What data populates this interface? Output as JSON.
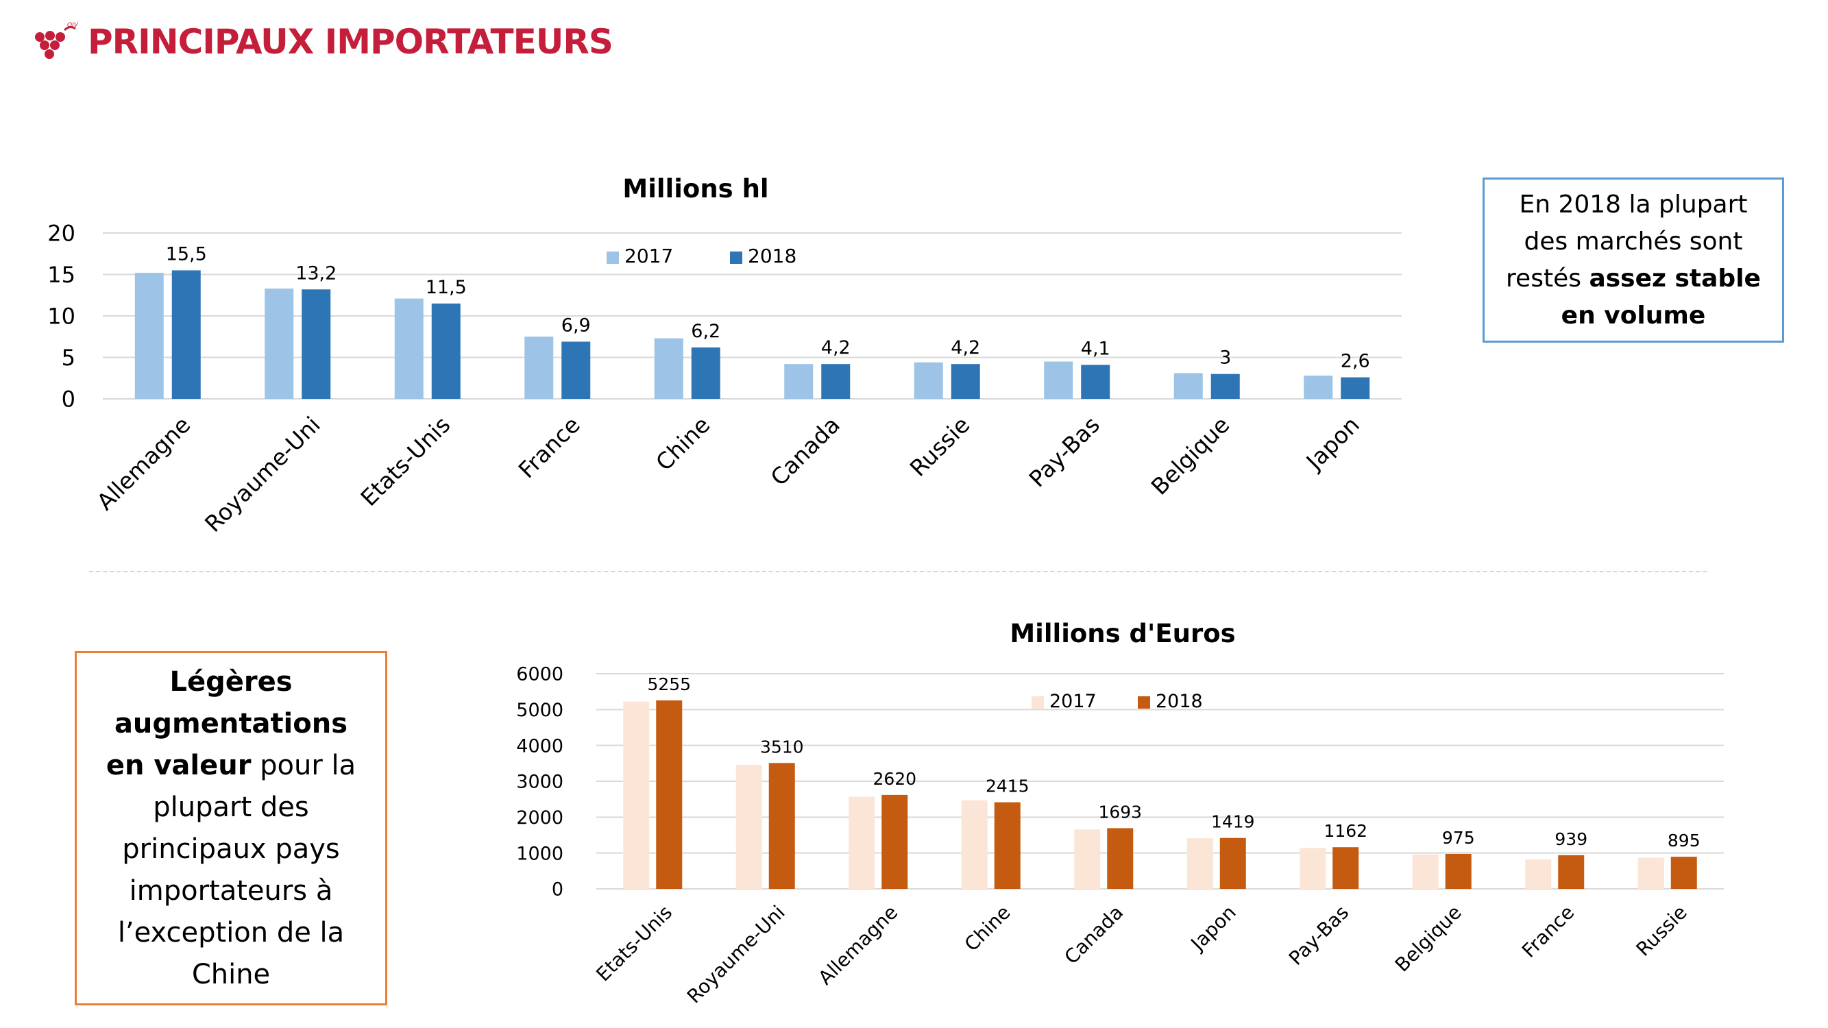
{
  "header": {
    "title": "PRINCIPAUX IMPORTATEURS",
    "logo_text": "OIV"
  },
  "notes": {
    "volume": {
      "line1": "En 2018 la plupart",
      "line2": "des marchés sont",
      "line3_prefix": "restés ",
      "line3_bold": "assez stable",
      "line4_bold": "en volume"
    },
    "value": {
      "bold_part": "Légères augmentations en valeur",
      "rest_part": " pour la plupart des principaux pays importateurs à l’exception de la Chine"
    }
  },
  "colors": {
    "title": "#c41e3a",
    "volume_2017": "#9dc3e6",
    "volume_2018": "#2e75b6",
    "value_2017": "#fbe5d6",
    "value_2018": "#c55a11",
    "note_blue_border": "#5b9bd5",
    "note_orange_border": "#ed7d31"
  },
  "chart_data": [
    {
      "type": "bar",
      "title": "Millions hl",
      "categories": [
        "Allemagne",
        "Royaume-Uni",
        "Etats-Unis",
        "France",
        "Chine",
        "Canada",
        "Russie",
        "Pay-Bas",
        "Belgique",
        "Japon"
      ],
      "series": [
        {
          "name": "2017",
          "values": [
            15.2,
            13.3,
            12.1,
            7.5,
            7.3,
            4.2,
            4.4,
            4.5,
            3.1,
            2.8
          ]
        },
        {
          "name": "2018",
          "values": [
            15.5,
            13.2,
            11.5,
            6.9,
            6.2,
            4.2,
            4.2,
            4.1,
            3.0,
            2.6
          ]
        }
      ],
      "data_labels": [
        "15,5",
        "13,2",
        "11,5",
        "6,9",
        "6,2",
        "4,2",
        "4,2",
        "4,1",
        "3",
        "2,6"
      ],
      "ylim": [
        0,
        20
      ],
      "y_ticks": [
        0,
        5,
        10,
        15,
        20
      ],
      "y_tick_labels": [
        "0",
        "5",
        "10",
        "15",
        "20"
      ],
      "grid": true,
      "legend": "top-center"
    },
    {
      "type": "bar",
      "title": "Millions d'Euros",
      "categories": [
        "Etats-Unis",
        "Royaume-Uni",
        "Allemagne",
        "Chine",
        "Canada",
        "Japon",
        "Pay-Bas",
        "Belgique",
        "France",
        "Russie"
      ],
      "series": [
        {
          "name": "2017",
          "values": [
            5220,
            3460,
            2570,
            2470,
            1660,
            1410,
            1140,
            960,
            820,
            870
          ]
        },
        {
          "name": "2018",
          "values": [
            5255,
            3510,
            2620,
            2415,
            1693,
            1419,
            1162,
            975,
            939,
            895
          ]
        }
      ],
      "data_labels": [
        "5255",
        "3510",
        "2620",
        "2415",
        "1693",
        "1419",
        "1162",
        "975",
        "939",
        "895"
      ],
      "ylim": [
        0,
        6000
      ],
      "y_ticks": [
        0,
        1000,
        2000,
        3000,
        4000,
        5000,
        6000
      ],
      "y_tick_labels": [
        "0",
        "1000",
        "2000",
        "3000",
        "4000",
        "5000",
        "6000"
      ],
      "grid": true,
      "legend": "top-center"
    }
  ]
}
